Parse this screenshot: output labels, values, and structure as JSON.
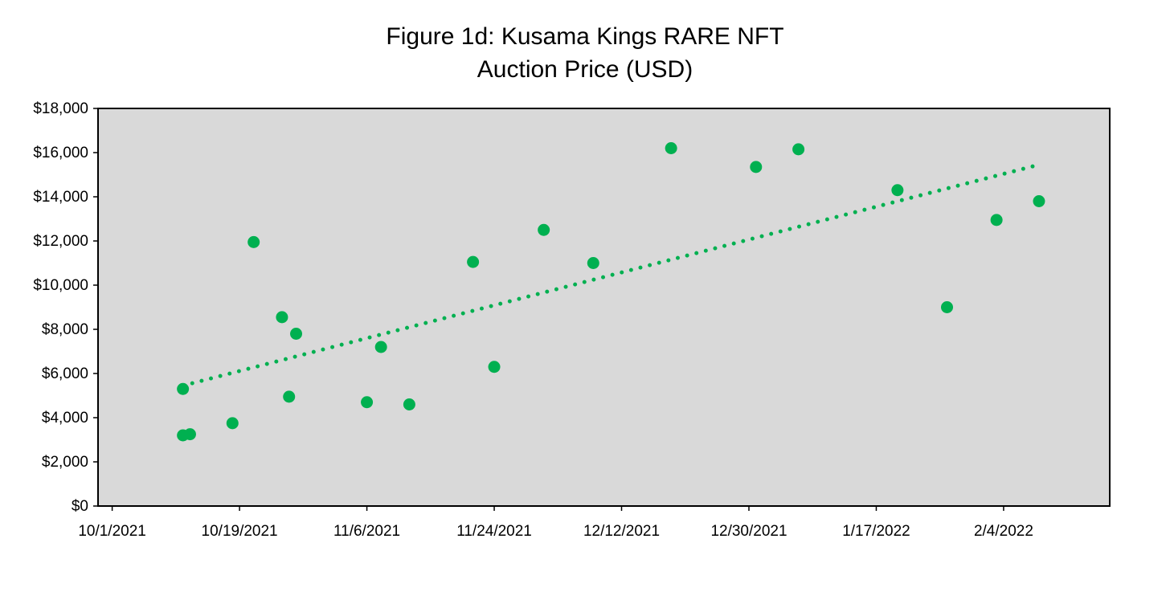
{
  "chart_data": {
    "type": "scatter",
    "title_lines": [
      "Figure 1d: Kusama Kings RARE NFT",
      "Auction Price (USD)"
    ],
    "xlabel": "",
    "ylabel": "",
    "x_tick_labels": [
      "10/1/2021",
      "10/19/2021",
      "11/6/2021",
      "11/24/2021",
      "12/12/2021",
      "12/30/2021",
      "1/17/2022",
      "2/4/2022"
    ],
    "y_tick_labels": [
      "$0",
      "$2,000",
      "$4,000",
      "$6,000",
      "$8,000",
      "$10,000",
      "$12,000",
      "$14,000",
      "$16,000",
      "$18,000"
    ],
    "xlim": [
      "2021-09-29",
      "2022-02-19"
    ],
    "ylim": [
      0,
      18000
    ],
    "grid": false,
    "plot_background": "#d9d9d9",
    "marker_color": "#00b050",
    "series": [
      {
        "points": [
          {
            "x": "2021-10-11",
            "y": 5300
          },
          {
            "x": "2021-10-11",
            "y": 3200
          },
          {
            "x": "2021-10-12",
            "y": 3250
          },
          {
            "x": "2021-10-18",
            "y": 3750
          },
          {
            "x": "2021-10-21",
            "y": 11950
          },
          {
            "x": "2021-10-25",
            "y": 8550
          },
          {
            "x": "2021-10-26",
            "y": 4950
          },
          {
            "x": "2021-10-27",
            "y": 7800
          },
          {
            "x": "2021-11-06",
            "y": 4700
          },
          {
            "x": "2021-11-08",
            "y": 7200
          },
          {
            "x": "2021-11-12",
            "y": 4600
          },
          {
            "x": "2021-11-21",
            "y": 11050
          },
          {
            "x": "2021-11-24",
            "y": 6300
          },
          {
            "x": "2021-12-01",
            "y": 12500
          },
          {
            "x": "2021-12-08",
            "y": 11000
          },
          {
            "x": "2021-12-19",
            "y": 16200
          },
          {
            "x": "2021-12-31",
            "y": 15350
          },
          {
            "x": "2022-01-06",
            "y": 16150
          },
          {
            "x": "2022-01-20",
            "y": 14300
          },
          {
            "x": "2022-01-27",
            "y": 9000
          },
          {
            "x": "2022-02-03",
            "y": 12950
          },
          {
            "x": "2022-02-09",
            "y": 13800
          }
        ]
      }
    ],
    "trendline": {
      "style": "dotted",
      "from": {
        "x": "2021-10-11",
        "y": 5450
      },
      "to": {
        "x": "2022-02-09",
        "y": 15450
      }
    }
  }
}
